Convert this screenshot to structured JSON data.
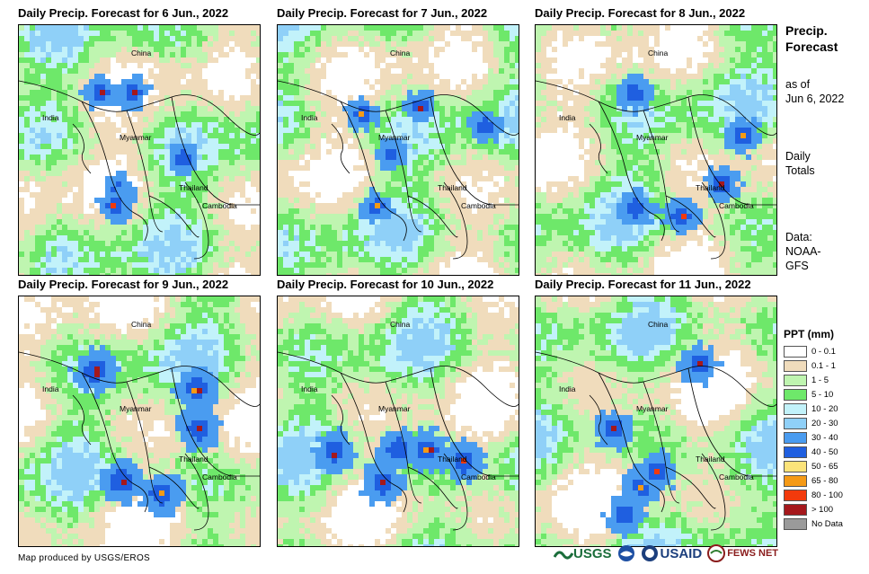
{
  "panels": [
    {
      "title": "Daily Precip. Forecast for 6 Jun., 2022",
      "intensity": 0.55
    },
    {
      "title": "Daily Precip. Forecast for 7 Jun., 2022",
      "intensity": 0.5
    },
    {
      "title": "Daily Precip. Forecast for 8 Jun., 2022",
      "intensity": 0.6
    },
    {
      "title": "Daily Precip. Forecast for 9 Jun., 2022",
      "intensity": 0.75
    },
    {
      "title": "Daily Precip. Forecast for 10 Jun., 2022",
      "intensity": 0.7
    },
    {
      "title": "Daily Precip. Forecast for 11 Jun., 2022",
      "intensity": 0.65
    }
  ],
  "map_labels": {
    "china": "China",
    "india": "India",
    "myanmar": "Myanmar",
    "thailand": "Thailand",
    "cambodia": "Cambodia"
  },
  "sidebar": {
    "title_line1": "Precip.",
    "title_line2": "Forecast",
    "asof_line1": "as of",
    "asof_line2": "Jun 6, 2022",
    "totals_line1": "Daily",
    "totals_line2": "Totals",
    "data_line1": "Data:",
    "data_line2": "NOAA-",
    "data_line3": "GFS"
  },
  "legend": {
    "title": "PPT (mm)",
    "items": [
      {
        "label": "0 - 0.1",
        "color": "#ffffff"
      },
      {
        "label": "0.1 - 1",
        "color": "#f0dcbc"
      },
      {
        "label": "1 - 5",
        "color": "#bff5b0"
      },
      {
        "label": "5 - 10",
        "color": "#6ee86a"
      },
      {
        "label": "10 - 20",
        "color": "#c2f2fa"
      },
      {
        "label": "20 - 30",
        "color": "#8fd0f8"
      },
      {
        "label": "30 - 40",
        "color": "#4a9cf0"
      },
      {
        "label": "40 - 50",
        "color": "#1f5fe0"
      },
      {
        "label": "50 - 65",
        "color": "#fbe37a"
      },
      {
        "label": "65 - 80",
        "color": "#f59a16"
      },
      {
        "label": "80 - 100",
        "color": "#f23a0c"
      },
      {
        "label": "> 100",
        "color": "#a5181c"
      },
      {
        "label": "No Data",
        "color": "#9a9a9a"
      }
    ]
  },
  "credit": "Map produced by USGS/EROS",
  "logos": {
    "usgs": "USGS",
    "usaid": "USAID",
    "fewsnet": "FEWS NET"
  }
}
